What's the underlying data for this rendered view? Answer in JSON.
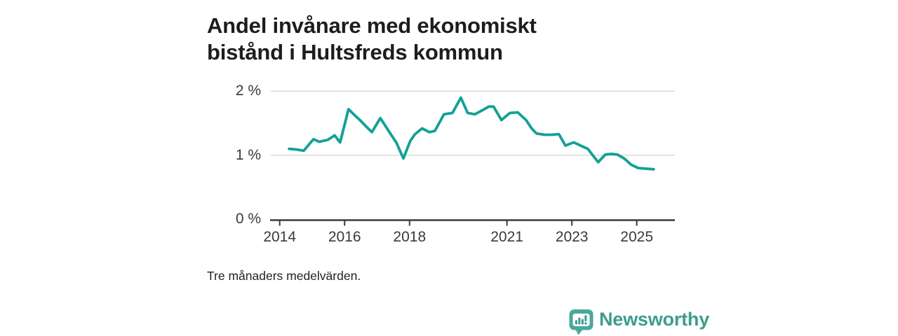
{
  "header": {
    "title_line1": "Andel invånare med ekonomiskt",
    "title_line2": "bistånd i Hultsfreds kommun"
  },
  "footer": {
    "note": "Tre månaders medelvärden.",
    "brand": "Newsworthy"
  },
  "colors": {
    "line": "#13a195",
    "grid": "#d9d9d9",
    "axis": "#3a3a3a",
    "title_text": "#1d1d1d",
    "logo_bubble": "#4ba89b",
    "logo_accent": "#3d9c90",
    "brand_text": "#3d9c90"
  },
  "chart_data": {
    "type": "line",
    "title": "Andel invånare med ekonomiskt bistånd i Hultsfreds kommun",
    "note": "Tre månaders medelvärden.",
    "series_name": "Andel invånare med ekonomiskt bistånd",
    "unit": "%",
    "x": [
      2014.29,
      2014.5,
      2014.74,
      2015.04,
      2015.22,
      2015.48,
      2015.69,
      2015.86,
      2016.12,
      2016.3,
      2016.47,
      2016.68,
      2016.84,
      2017.1,
      2017.38,
      2017.59,
      2017.81,
      2018.02,
      2018.17,
      2018.39,
      2018.61,
      2018.78,
      2019.06,
      2019.32,
      2019.58,
      2019.79,
      2020.01,
      2020.23,
      2020.44,
      2020.59,
      2020.83,
      2021.09,
      2021.33,
      2021.59,
      2021.76,
      2021.91,
      2022.17,
      2022.39,
      2022.6,
      2022.8,
      2023.06,
      2023.27,
      2023.49,
      2023.81,
      2024.03,
      2024.22,
      2024.4,
      2024.61,
      2024.83,
      2025.04,
      2025.26,
      2025.52
    ],
    "y": [
      1.1,
      1.09,
      1.07,
      1.25,
      1.21,
      1.24,
      1.31,
      1.2,
      1.72,
      1.63,
      1.55,
      1.44,
      1.36,
      1.58,
      1.36,
      1.2,
      0.95,
      1.22,
      1.33,
      1.42,
      1.36,
      1.38,
      1.64,
      1.66,
      1.9,
      1.66,
      1.64,
      1.7,
      1.76,
      1.76,
      1.55,
      1.66,
      1.67,
      1.55,
      1.42,
      1.34,
      1.32,
      1.32,
      1.33,
      1.15,
      1.2,
      1.15,
      1.1,
      0.89,
      1.01,
      1.02,
      1.01,
      0.95,
      0.85,
      0.8,
      0.79,
      0.78
    ],
    "xlim": [
      2013.72,
      2026.17
    ],
    "ylim": [
      0,
      2.2
    ],
    "x_ticks": [
      2014,
      2016,
      2018,
      2021,
      2023,
      2025
    ],
    "x_tick_labels": [
      "2014",
      "2016",
      "2018",
      "2021",
      "2023",
      "2025"
    ],
    "y_ticks": [
      0,
      1,
      2
    ],
    "y_tick_labels": [
      "0 %",
      "1 %",
      "2 %"
    ],
    "gridlines": [
      1,
      2
    ],
    "grid": "horizontal-only",
    "legend": "none"
  }
}
